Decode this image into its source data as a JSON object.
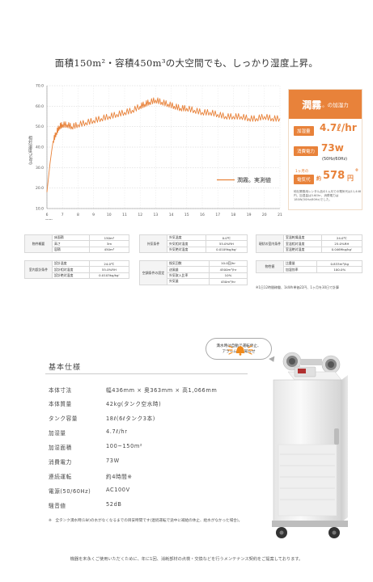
{
  "headline": "面積150m²・容積450m³の大空間でも、しっかり湿度上昇。",
  "chart_data": {
    "type": "line",
    "ylabel": "相対湿度(%RH)",
    "xlabel": "時刻",
    "x_ticks": [
      "6",
      "7",
      "8",
      "9",
      "10",
      "11",
      "12",
      "13",
      "14",
      "15",
      "16",
      "17",
      "18",
      "19",
      "20",
      "21"
    ],
    "y_ticks": [
      "10.0",
      "20.0",
      "30.0",
      "40.0",
      "50.0",
      "60.0",
      "70.0"
    ],
    "ylim": [
      10,
      70
    ],
    "xlim": [
      6,
      21
    ],
    "grid": true,
    "legend_position": "center-right",
    "series": [
      {
        "name": "潤霧。実測値",
        "color": "#e8823a",
        "x": [
          6.0,
          6.1,
          6.2,
          6.3,
          6.4,
          6.6,
          6.8,
          7.0,
          7.3,
          7.6,
          8.0,
          8.5,
          9.0,
          9.5,
          10.0,
          10.5,
          11.0,
          11.5,
          12.0,
          12.3,
          12.6,
          13.0,
          13.4,
          13.8,
          14.2,
          14.6,
          15.0,
          15.5,
          16.0,
          16.5,
          17.0,
          17.5,
          18.0,
          18.5,
          19.0,
          19.5,
          20.0,
          20.5,
          21.0
        ],
        "y": [
          18,
          25,
          32,
          38,
          43,
          47,
          50,
          51,
          51,
          50,
          51,
          52,
          53,
          54,
          55,
          56,
          57,
          58,
          60,
          61,
          62,
          63,
          62,
          61,
          60,
          59,
          59,
          58,
          57,
          57,
          56,
          55,
          55,
          55,
          54,
          54,
          55,
          54,
          54
        ]
      }
    ]
  },
  "card": {
    "brand": "潤霧",
    "brand_ruby": "うるむ",
    "title_suffix": "。の加湿力",
    "humidify_label": "加湿量",
    "humidify_value": "4.7ℓ/hr",
    "power_label": "消費電力",
    "power_value": "73w",
    "power_hz": "(50Hz/60Hz)",
    "monthly_label_1": "1ヶ月の",
    "monthly_label_2": "電気代",
    "monthly_prefix": "約",
    "monthly_value": "578",
    "monthly_unit": "円",
    "monthly_mark": "※",
    "note": "他社業務用レンタル品の1ヵ月での電気代は11,448円、加湿量は3.6ℓ/hr、消費電力は180W(50Hz/60Hz)でした。"
  },
  "tables": {
    "property": {
      "group": "物件概要",
      "rows": [
        [
          "床面積",
          "150m²"
        ],
        [
          "高さ",
          "3m"
        ],
        [
          "容積",
          "450m³"
        ]
      ]
    },
    "outdoor": {
      "group": "外気条件",
      "rows": [
        [
          "外気温度",
          "0.0℃"
        ],
        [
          "外気相対湿度",
          "55.0%RH"
        ],
        [
          "外気絶対湿度",
          "0.0109kg/kg'"
        ]
      ]
    },
    "current": {
      "group": "現状の室内条件",
      "rows": [
        [
          "室温乾燥温度",
          "24.0℃"
        ],
        [
          "室温相対湿度",
          "25.0%RH"
        ],
        [
          "室温絶対湿度",
          "0.0469kg/kg'"
        ]
      ]
    },
    "design": {
      "group": "室内設計条件",
      "rows": [
        [
          "設計温度",
          "24.0℃"
        ],
        [
          "設計相対湿度",
          "55.0%RH"
        ],
        [
          "設計絶対湿度",
          "0.0103kg/kg'"
        ]
      ]
    },
    "hvac": {
      "group": "空調条件の設定",
      "rows": [
        [
          "換気回数",
          "10.0回/hr"
        ],
        [
          "送風量",
          "4500m³/hr"
        ],
        [
          "外気取入比率",
          "10%"
        ],
        [
          "外気量",
          "450m³/hr"
        ]
      ]
    },
    "props": {
      "group": "物性値",
      "rows": [
        [
          "比重量",
          "0.833m³/kg"
        ],
        [
          "加湿効率",
          "100.0%"
        ]
      ]
    },
    "foot_note": "※1日12時間稼働、1kWh単価22円、1ヶ月を30日で計算"
  },
  "bubble_text": [
    "満水時は自動で運転停止、",
    "アラームでお知らせ"
  ],
  "specs": {
    "title": "基本仕様",
    "rows": [
      {
        "k": "本体寸法",
        "v": "幅436mm × 奥363mm × 高1,066mm"
      },
      {
        "k": "本体質量",
        "v": "42kg(タンク空水時)"
      },
      {
        "k": "タンク容量",
        "v": "18ℓ(6ℓタンク3本)"
      },
      {
        "k": "加湿量",
        "v": "4.7ℓ/hr"
      },
      {
        "k": "加湿面積",
        "v": "100~150m²"
      },
      {
        "k": "消費電力",
        "v": "73W"
      },
      {
        "k": "連続運転",
        "v": "約4時間※"
      },
      {
        "k": "電源(50/60Hz)",
        "v": "AC100V"
      },
      {
        "k": "騒音値",
        "v": "52dB"
      }
    ],
    "footnote": "※　全タンク満水時(18ℓ)の水がなくなるまでの目安時間です(連続運転で途中に補給の休止、給水がなかった場合)。",
    "bottom_note": "機器を末永くご使用いただくために、年に1回、消耗部材の点検・交換などを行うメンテナンス契約をご提案しております。"
  }
}
